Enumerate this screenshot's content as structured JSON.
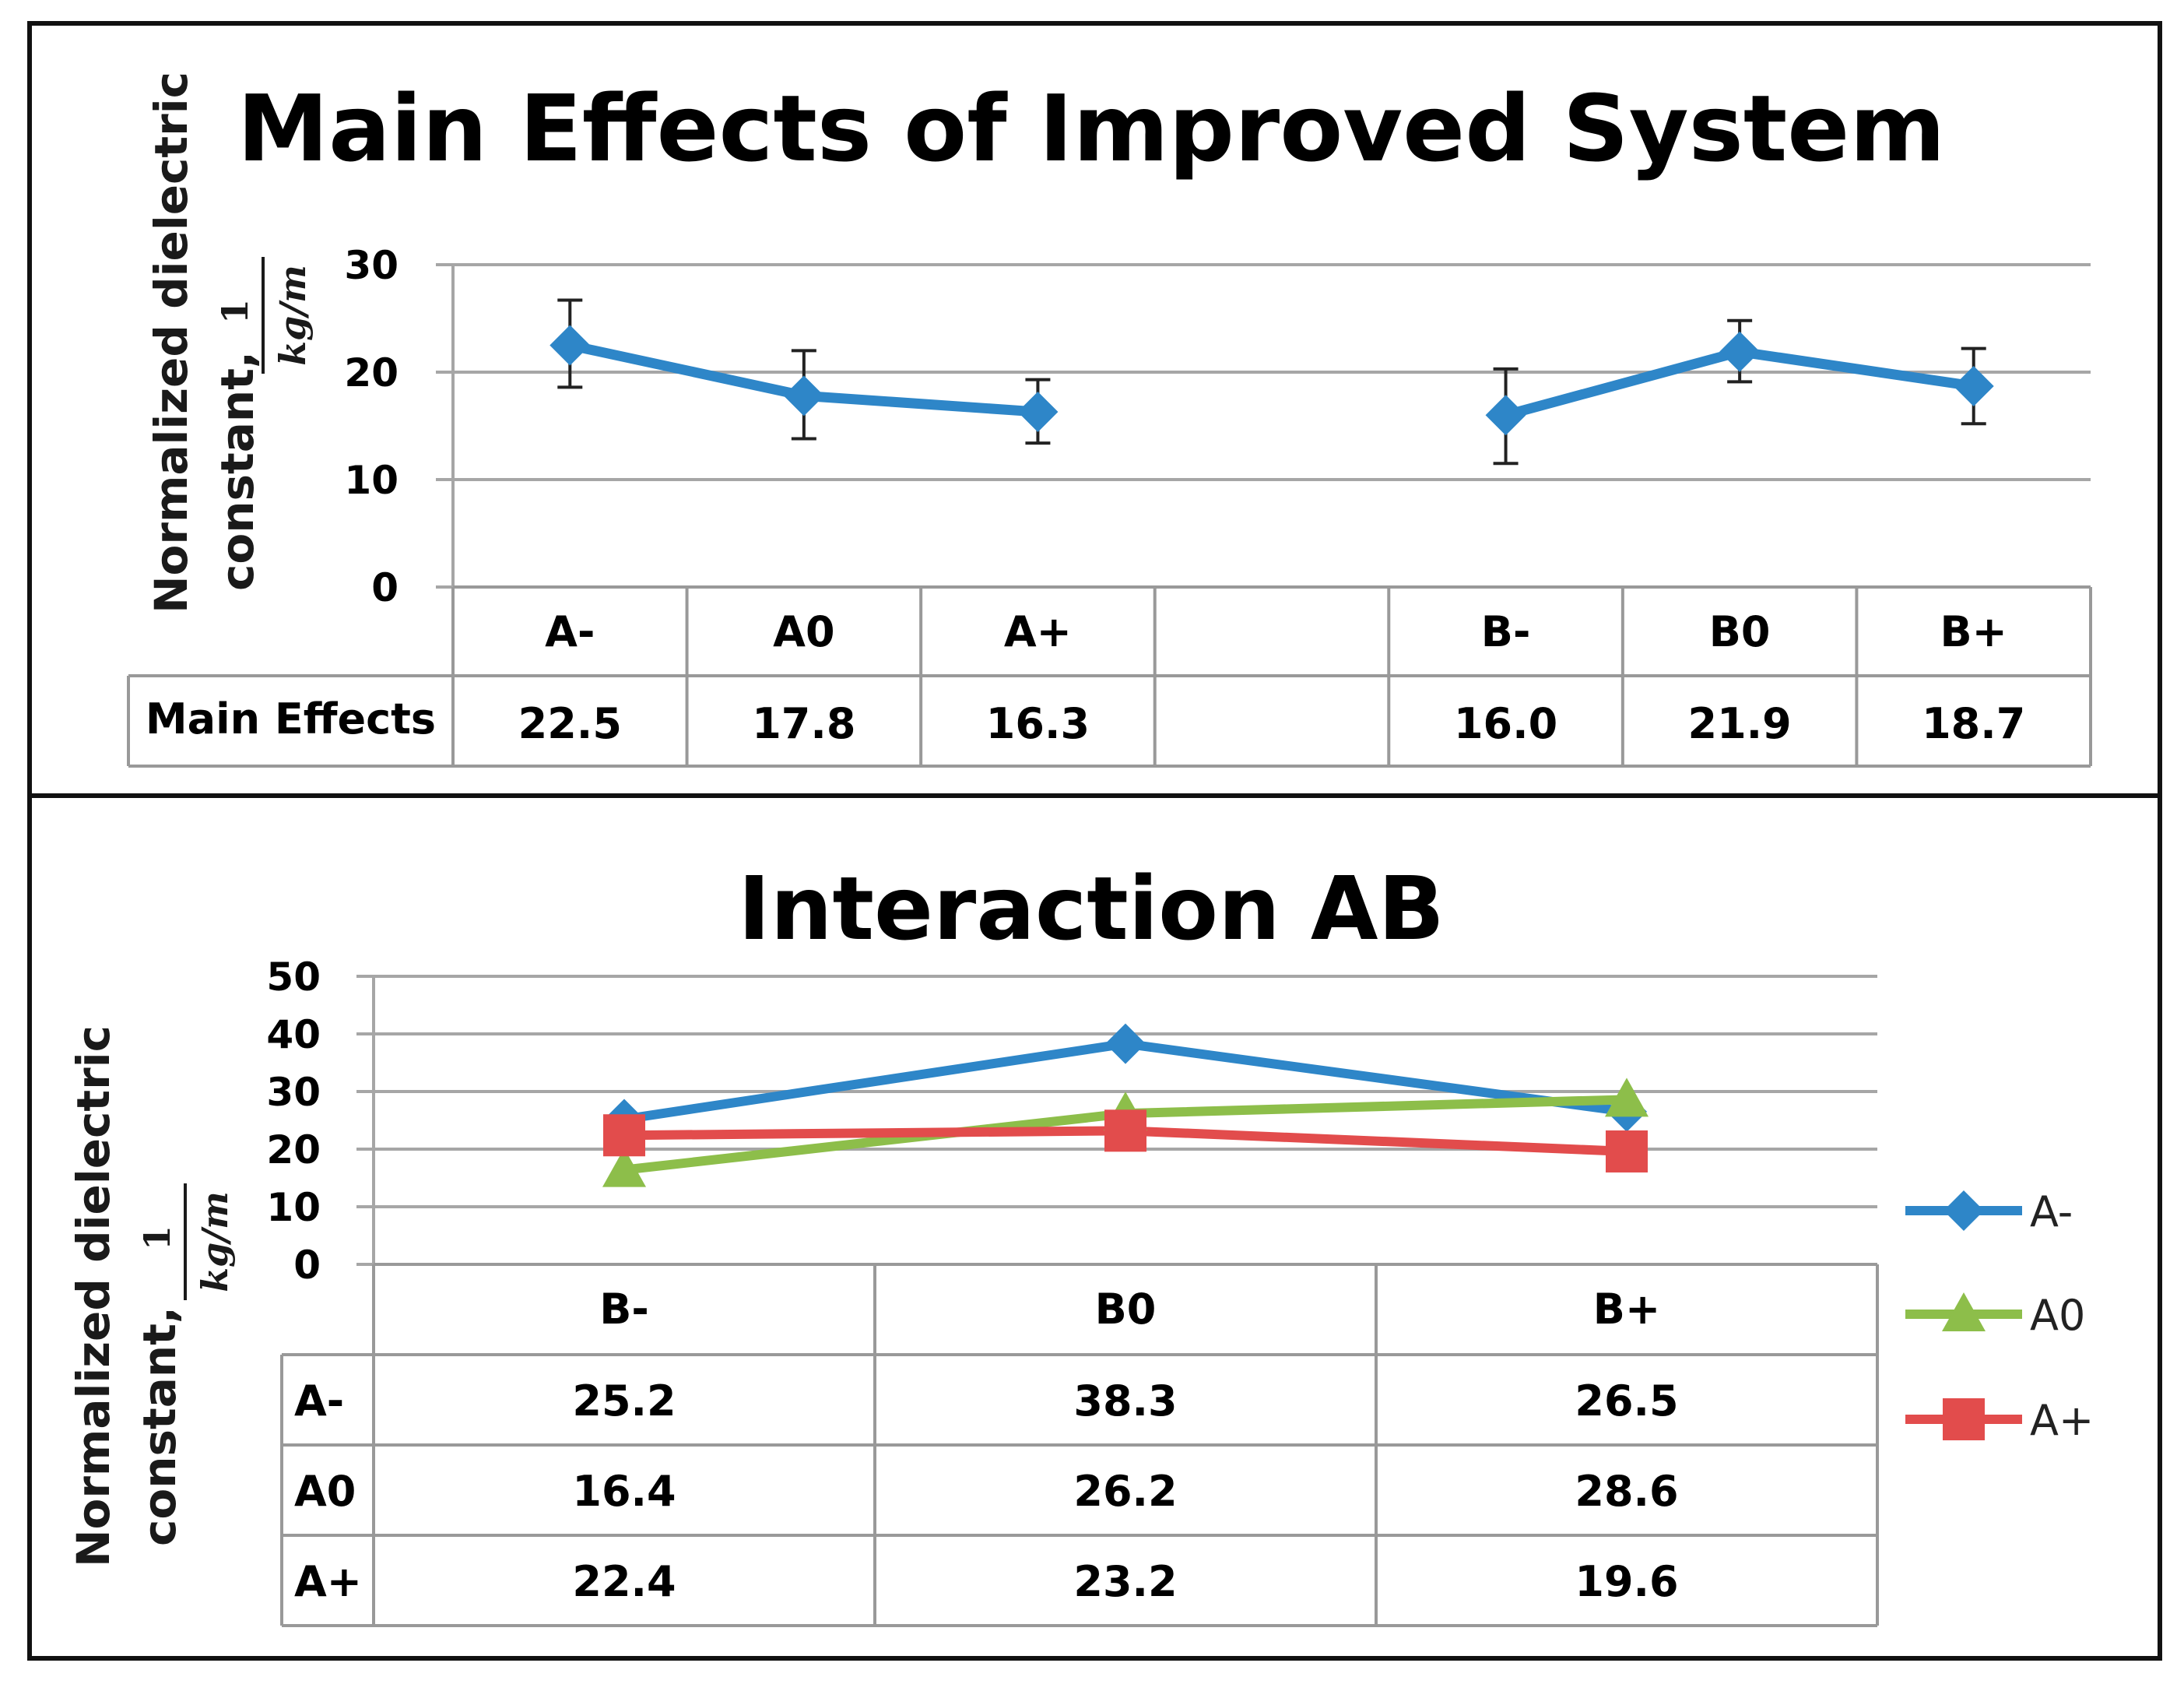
{
  "chart_data": [
    {
      "type": "line",
      "title": "Main Effects of Improved System",
      "ylabel_line1": "Normalized dielectric",
      "ylabel_line2": "constant,",
      "yunit_numerator": "1",
      "yunit_denominator": "kg/m",
      "ylim": [
        0,
        30
      ],
      "yticks": [
        "0",
        "10",
        "20",
        "30"
      ],
      "grid": true,
      "categories": [
        "A-",
        "A0",
        "A+",
        "",
        "B-",
        "B0",
        "B+"
      ],
      "row_label": "Main Effects",
      "value_labels": [
        "22.5",
        "17.8",
        "16.3",
        "",
        "16.0",
        "21.9",
        "18.7"
      ],
      "series": [
        {
          "name": "Main Effects",
          "color": "#2E86C8",
          "marker": "diamond",
          "values": [
            22.5,
            17.8,
            16.3,
            null,
            16.0,
            21.9,
            18.7
          ],
          "error_low": [
            18.6,
            13.8,
            13.4,
            null,
            11.5,
            19.1,
            15.2
          ],
          "error_high": [
            26.7,
            22.0,
            19.3,
            null,
            20.3,
            24.8,
            22.2
          ]
        }
      ]
    },
    {
      "type": "line",
      "title": "Interaction AB",
      "ylabel_line1": "Normalized dielectric",
      "ylabel_line2": "constant,",
      "yunit_numerator": "1",
      "yunit_denominator": "kg/m",
      "ylim": [
        0,
        50
      ],
      "yticks": [
        "0",
        "10",
        "20",
        "30",
        "40",
        "50"
      ],
      "grid": true,
      "legend_position": "right",
      "categories": [
        "B-",
        "B0",
        "B+"
      ],
      "rows": [
        {
          "label": "A-",
          "cells": [
            "25.2",
            "38.3",
            "26.5"
          ]
        },
        {
          "label": "A0",
          "cells": [
            "16.4",
            "26.2",
            "28.6"
          ]
        },
        {
          "label": "A+",
          "cells": [
            "22.4",
            "23.2",
            "19.6"
          ]
        }
      ],
      "series": [
        {
          "name": "A-",
          "color": "#2E86C8",
          "marker": "diamond",
          "values": [
            25.2,
            38.3,
            26.5
          ]
        },
        {
          "name": "A0",
          "color": "#8DBE4A",
          "marker": "triangle",
          "values": [
            16.4,
            26.2,
            28.6
          ]
        },
        {
          "name": "A+",
          "color": "#E24C4C",
          "marker": "square",
          "values": [
            22.4,
            23.2,
            19.6
          ]
        }
      ]
    }
  ]
}
